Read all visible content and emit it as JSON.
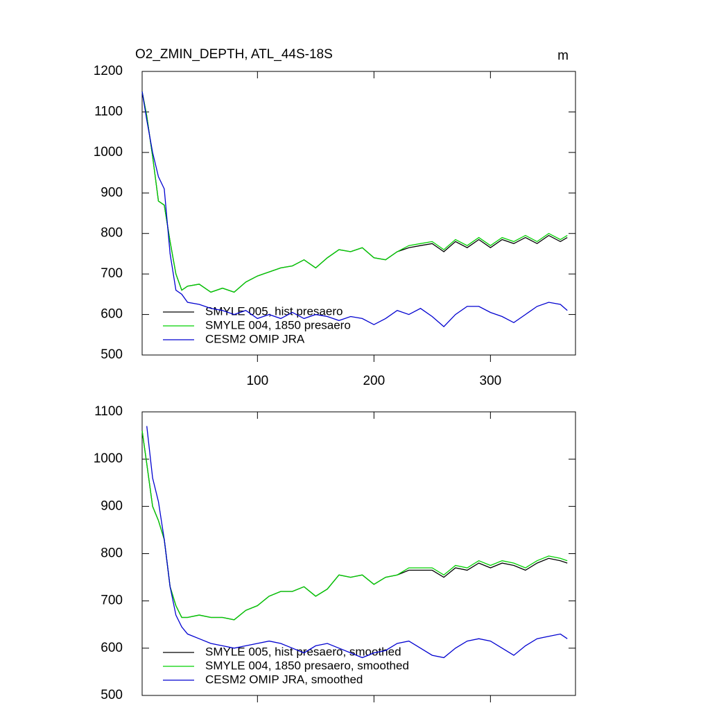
{
  "chart_data": [
    {
      "type": "line",
      "title": "O2_ZMIN_DEPTH, ATL_44S-18S",
      "units": "m",
      "legend": "lower left",
      "x": [
        1,
        5,
        10,
        15,
        20,
        25,
        30,
        35,
        40,
        50,
        60,
        70,
        80,
        90,
        100,
        110,
        120,
        130,
        140,
        150,
        160,
        170,
        180,
        190,
        200,
        210,
        220,
        230,
        240,
        250,
        260,
        270,
        280,
        290,
        300,
        310,
        320,
        330,
        340,
        350,
        360,
        366
      ],
      "xlim": [
        1,
        373
      ],
      "xticks": [
        100,
        200,
        300
      ],
      "xtick_labels": true,
      "ylim": [
        500,
        1200
      ],
      "yticks": [
        500,
        600,
        700,
        800,
        900,
        1000,
        1100,
        1200
      ],
      "series": [
        {
          "name": "SMYLE 005, hist presaero",
          "color": "#000000",
          "values": [
            1150,
            1090,
            990,
            880,
            870,
            780,
            700,
            660,
            670,
            675,
            655,
            665,
            655,
            680,
            695,
            705,
            715,
            720,
            735,
            715,
            740,
            760,
            755,
            765,
            740,
            735,
            755,
            765,
            770,
            775,
            755,
            780,
            765,
            785,
            765,
            785,
            775,
            790,
            775,
            795,
            780,
            790
          ]
        },
        {
          "name": "SMYLE 004, 1850 presaero",
          "color": "#00d000",
          "values": [
            1150,
            1090,
            990,
            880,
            870,
            780,
            700,
            660,
            670,
            675,
            655,
            665,
            655,
            680,
            695,
            705,
            715,
            720,
            735,
            715,
            740,
            760,
            755,
            765,
            740,
            735,
            755,
            770,
            775,
            780,
            760,
            785,
            770,
            790,
            770,
            790,
            780,
            795,
            780,
            800,
            785,
            795
          ]
        },
        {
          "name": "CESM2 OMIP JRA",
          "color": "#0000d0",
          "values": [
            1150,
            1080,
            1000,
            940,
            910,
            750,
            660,
            650,
            630,
            625,
            615,
            610,
            600,
            610,
            590,
            600,
            590,
            605,
            590,
            600,
            595,
            585,
            595,
            590,
            575,
            590,
            610,
            600,
            615,
            595,
            570,
            600,
            620,
            620,
            605,
            595,
            580,
            600,
            620,
            630,
            625,
            610
          ]
        }
      ]
    },
    {
      "type": "line",
      "legend": "lower left",
      "x": [
        1,
        5,
        10,
        15,
        20,
        25,
        30,
        35,
        40,
        50,
        60,
        70,
        80,
        90,
        100,
        110,
        120,
        130,
        140,
        150,
        160,
        170,
        180,
        190,
        200,
        210,
        220,
        230,
        240,
        250,
        260,
        270,
        280,
        290,
        300,
        310,
        320,
        330,
        340,
        350,
        360,
        366
      ],
      "xlim": [
        1,
        373
      ],
      "xticks": [
        100,
        200,
        300
      ],
      "xtick_labels": false,
      "ylim": [
        500,
        1100
      ],
      "yticks": [
        500,
        600,
        700,
        800,
        900,
        1000,
        1100
      ],
      "series": [
        {
          "name": "SMYLE 005, hist presaero, smoothed",
          "color": "#000000",
          "values": [
            1060,
            990,
            900,
            870,
            830,
            730,
            690,
            665,
            665,
            670,
            665,
            665,
            660,
            680,
            690,
            710,
            720,
            720,
            730,
            710,
            725,
            755,
            750,
            755,
            735,
            750,
            755,
            765,
            765,
            765,
            750,
            770,
            765,
            780,
            770,
            780,
            775,
            765,
            780,
            790,
            785,
            780
          ]
        },
        {
          "name": "SMYLE 004, 1850 presaero, smoothed",
          "color": "#00d000",
          "values": [
            1060,
            990,
            900,
            870,
            830,
            730,
            690,
            665,
            665,
            670,
            665,
            665,
            660,
            680,
            690,
            710,
            720,
            720,
            730,
            710,
            725,
            755,
            750,
            755,
            735,
            750,
            755,
            770,
            770,
            770,
            755,
            775,
            770,
            785,
            775,
            785,
            780,
            770,
            785,
            795,
            790,
            785
          ]
        },
        {
          "name": "CESM2 OMIP JRA, smoothed",
          "color": "#0000d0",
          "values": [
            null,
            1070,
            960,
            910,
            830,
            730,
            670,
            645,
            630,
            620,
            610,
            605,
            600,
            605,
            610,
            615,
            610,
            600,
            590,
            605,
            610,
            600,
            590,
            580,
            590,
            595,
            610,
            615,
            600,
            585,
            580,
            600,
            615,
            620,
            615,
            600,
            585,
            605,
            620,
            625,
            630,
            620
          ]
        }
      ]
    }
  ]
}
